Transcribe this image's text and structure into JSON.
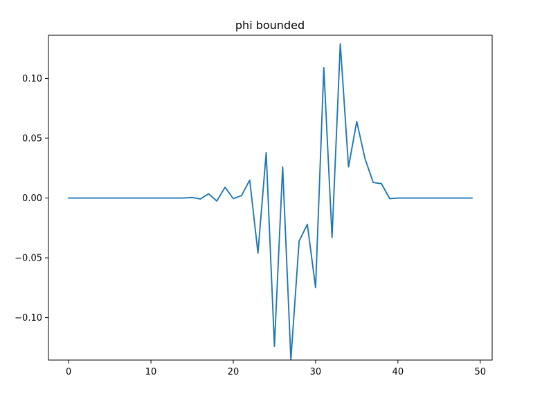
{
  "chart_data": {
    "type": "line",
    "title": "phi bounded",
    "xlabel": "",
    "ylabel": "",
    "xlim": [
      -2.45,
      51.45
    ],
    "ylim": [
      -0.1355,
      0.1361
    ],
    "xticks": [
      0,
      10,
      20,
      30,
      40,
      50
    ],
    "yticks": [
      -0.1,
      -0.05,
      0.0,
      0.05,
      0.1
    ],
    "xtick_labels": [
      "0",
      "10",
      "20",
      "30",
      "40",
      "50"
    ],
    "ytick_labels": [
      "−0.10",
      "−0.05",
      "0.00",
      "0.05",
      "0.10"
    ],
    "grid": false,
    "line_color": "#1f77b4",
    "series": [
      {
        "x": [
          0,
          1,
          2,
          3,
          4,
          5,
          6,
          7,
          8,
          9,
          10,
          11,
          12,
          13,
          14,
          15,
          16,
          17,
          18,
          19,
          20,
          21,
          22,
          23,
          24,
          25,
          26,
          27,
          28,
          29,
          30,
          31,
          32,
          33,
          34,
          35,
          36,
          37,
          38,
          39,
          40,
          41,
          42,
          43,
          44,
          45,
          46,
          47,
          48,
          49
        ],
        "values": [
          0,
          0,
          0,
          0,
          0,
          0,
          0,
          0,
          0,
          0,
          0,
          0,
          0,
          0,
          0,
          0.0005,
          -0.0008,
          0.0035,
          -0.0025,
          0.009,
          -0.0005,
          0.002,
          0.015,
          -0.046,
          0.038,
          -0.124,
          0.026,
          -0.135,
          -0.036,
          -0.022,
          -0.075,
          0.109,
          -0.033,
          0.129,
          0.026,
          0.064,
          0.033,
          0.013,
          0.012,
          -0.0005,
          0,
          0,
          0,
          0,
          0,
          0,
          0,
          0,
          0,
          0
        ]
      }
    ]
  }
}
